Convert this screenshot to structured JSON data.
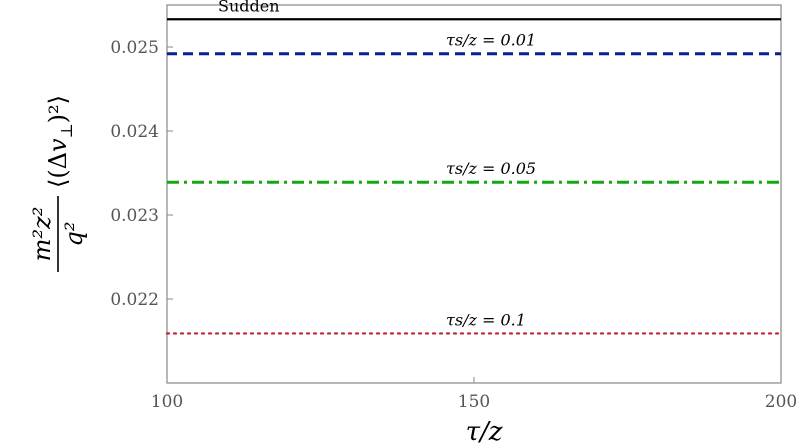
{
  "chart_data": {
    "type": "line",
    "title": "",
    "xlabel": "τ/z",
    "ylabel": "(m²z²/q²)⟨(Δv⊥)²⟩",
    "xlim": [
      100,
      200
    ],
    "ylim": [
      0.021,
      0.0255
    ],
    "x_ticks": [
      100,
      150,
      200
    ],
    "x_tick_labels": [
      "100",
      "150",
      "200"
    ],
    "y_ticks": [
      0.022,
      0.023,
      0.024,
      0.025
    ],
    "y_tick_labels": [
      "0.022",
      "0.023",
      "0.024",
      "0.025"
    ],
    "grid": false,
    "series": [
      {
        "name": "Sudden",
        "x": [
          100,
          200
        ],
        "values": [
          0.02533,
          0.02533
        ],
        "color": "#000000",
        "style": "solid"
      },
      {
        "name": "τs/z = 0.01",
        "x": [
          100,
          200
        ],
        "values": [
          0.02492,
          0.02492
        ],
        "color": "#0a1f8f",
        "style": "dashed"
      },
      {
        "name": "τs/z = 0.05",
        "x": [
          100,
          200
        ],
        "values": [
          0.02339,
          0.02339
        ],
        "color": "#11a811",
        "style": "dashdot"
      },
      {
        "name": "τs/z = 0.1",
        "x": [
          100,
          200
        ],
        "values": [
          0.02159,
          0.02159
        ],
        "color": "#c0202a",
        "style": "dotted"
      }
    ]
  }
}
